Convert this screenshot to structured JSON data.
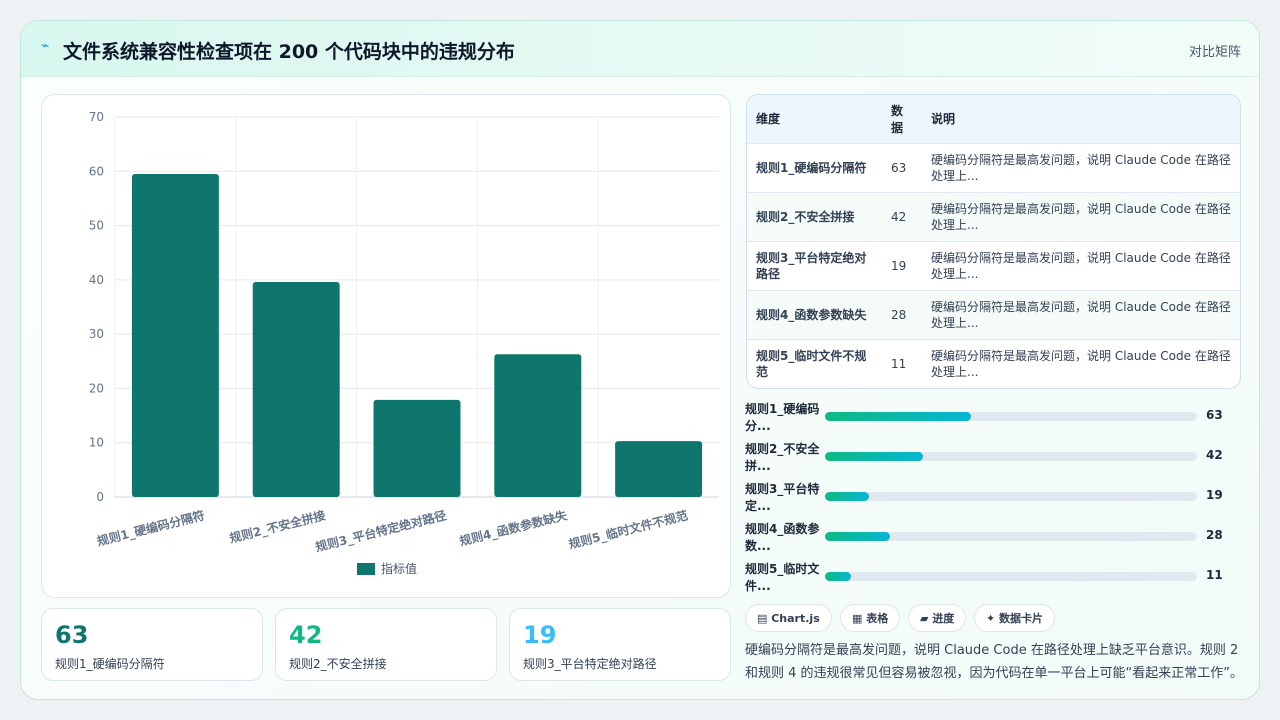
{
  "header": {
    "title": "文件系统兼容性检查项在 200 个代码块中的违规分布",
    "action": "对比矩阵"
  },
  "chart_data": {
    "type": "bar",
    "categories": [
      "规则1_硬编码分隔符",
      "规则2_不安全拼接",
      "规则3_平台特定绝对路径",
      "规则4_函数参数缺失",
      "规则5_临时文件不规范"
    ],
    "series": [
      {
        "name": "指标值",
        "color": "#0f766e",
        "values": [
          59.5,
          39.6,
          17.9,
          26.3,
          10.3
        ]
      }
    ],
    "ylim": [
      0,
      70
    ],
    "yticks": [
      0,
      10,
      20,
      30,
      40,
      50,
      60,
      70
    ],
    "grid": true,
    "legend": "bottom"
  },
  "table": {
    "headers": [
      "维度",
      "数据",
      "说明"
    ],
    "rows": [
      [
        "规则1_硬编码分隔符",
        "63",
        "硬编码分隔符是最高发问题，说明 Claude Code 在路径处理上..."
      ],
      [
        "规则2_不安全拼接",
        "42",
        "硬编码分隔符是最高发问题，说明 Claude Code 在路径处理上..."
      ],
      [
        "规则3_平台特定绝对路径",
        "19",
        "硬编码分隔符是最高发问题，说明 Claude Code 在路径处理上..."
      ],
      [
        "规则4_函数参数缺失",
        "28",
        "硬编码分隔符是最高发问题，说明 Claude Code 在路径处理上..."
      ],
      [
        "规则5_临时文件不规范",
        "11",
        "硬编码分隔符是最高发问题，说明 Claude Code 在路径处理上..."
      ]
    ]
  },
  "progress": {
    "xlim": [
      0,
      160
    ],
    "items": [
      {
        "label": "规则1_硬编码分...",
        "value": 63
      },
      {
        "label": "规则2_不安全拼...",
        "value": 42
      },
      {
        "label": "规则3_平台特定...",
        "value": 19
      },
      {
        "label": "规则4_函数参数...",
        "value": 28
      },
      {
        "label": "规则5_临时文件...",
        "value": 11
      }
    ]
  },
  "cards": [
    {
      "value": 63,
      "label": "规则1_硬编码分隔符",
      "color": "#0f766e"
    },
    {
      "value": 42,
      "label": "规则2_不安全拼接",
      "color": "#10b981"
    },
    {
      "value": 19,
      "label": "规则3_平台特定绝对路径",
      "color": "#38bdf8"
    }
  ],
  "tags": [
    "Chart.js",
    "表格",
    "进度",
    "数据卡片"
  ],
  "summary": "硬编码分隔符是最高发问题，说明 Claude Code 在路径处理上缺乏平台意识。规则 2 和规则 4 的违规很常见但容易被忽视，因为代码在单一平台上可能“看起来正常工作”。"
}
